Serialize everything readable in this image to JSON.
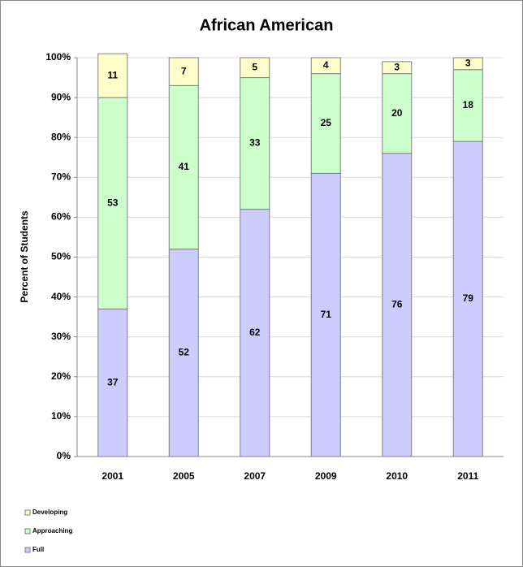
{
  "chart_data": {
    "type": "stacked_bar",
    "title": "African American",
    "y_label": "Percent of Students",
    "categories": [
      "2001",
      "2005",
      "2007",
      "2009",
      "2010",
      "2011"
    ],
    "series": [
      {
        "name": "Full",
        "color": "#ccccff",
        "values": [
          37,
          52,
          62,
          71,
          76,
          79
        ]
      },
      {
        "name": "Approaching",
        "color": "#ccffcc",
        "values": [
          53,
          41,
          33,
          25,
          20,
          18
        ]
      },
      {
        "name": "Developing",
        "color": "#ffffcc",
        "values": [
          11,
          7,
          5,
          4,
          3,
          3
        ]
      }
    ],
    "ylim": [
      0,
      100
    ],
    "yticks": [
      {
        "value": 0,
        "label": "0%"
      },
      {
        "value": 10,
        "label": "10%"
      },
      {
        "value": 20,
        "label": "20%"
      },
      {
        "value": 30,
        "label": "30%"
      },
      {
        "value": 40,
        "label": "40%"
      },
      {
        "value": 50,
        "label": "50%"
      },
      {
        "value": 60,
        "label": "60%"
      },
      {
        "value": 70,
        "label": "70%"
      },
      {
        "value": 80,
        "label": "80%"
      },
      {
        "value": 90,
        "label": "90%"
      },
      {
        "value": 100,
        "label": "100%"
      }
    ],
    "grid": true,
    "legend": "bottom-left"
  }
}
